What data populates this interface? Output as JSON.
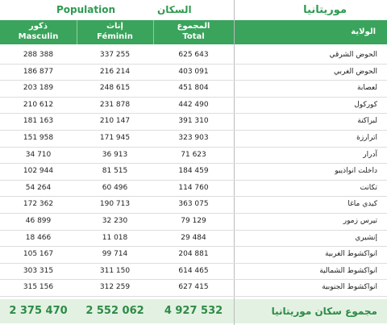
{
  "header": {
    "population_fr": "Population",
    "population_ar": "السكان",
    "country": "موريتانيا"
  },
  "table": {
    "columns": [
      {
        "ar": "ذكور",
        "fr": "Masculin"
      },
      {
        "ar": "إناث",
        "fr": "Féminin"
      },
      {
        "ar": "المجموع",
        "fr": "Total"
      },
      {
        "ar": "الولاية"
      }
    ],
    "rows": [
      [
        "288 388",
        "337 255",
        "625 643",
        "الحوض الشرقي"
      ],
      [
        "186 877",
        "216 214",
        "403 091",
        "الحوض الغربي"
      ],
      [
        "203 189",
        "248 615",
        "451 804",
        "لعصابة"
      ],
      [
        "210 612",
        "231 878",
        "442 490",
        "كوركول"
      ],
      [
        "181 163",
        "210 147",
        "391 310",
        "لبراكنة"
      ],
      [
        "151 958",
        "171 945",
        "323 903",
        "اترارزة"
      ],
      [
        "34 710",
        "36 913",
        "71 623",
        "آدرار"
      ],
      [
        "102 944",
        "81 515",
        "184 459",
        "داخلت انواذيبو"
      ],
      [
        "54 264",
        "60 496",
        "114 760",
        "تكانت"
      ],
      [
        "172 362",
        "190 713",
        "363 075",
        "كيدي ماغا"
      ],
      [
        "46 899",
        "32 230",
        "79 129",
        "تيرس زمور"
      ],
      [
        "18 466",
        "11 018",
        "29 484",
        "إنشيري"
      ],
      [
        "105 167",
        "99 714",
        "204 881",
        "انواكشوط الغربية"
      ],
      [
        "303 315",
        "311 150",
        "614 465",
        "انواكشوط الشمالية"
      ],
      [
        "315 156",
        "312 259",
        "627 415",
        "انواكشوط الجنوبية"
      ]
    ],
    "total": [
      "2 375 470",
      "2 552 062",
      "4 927 532",
      "مجموع سكان موريتانيا"
    ]
  }
}
